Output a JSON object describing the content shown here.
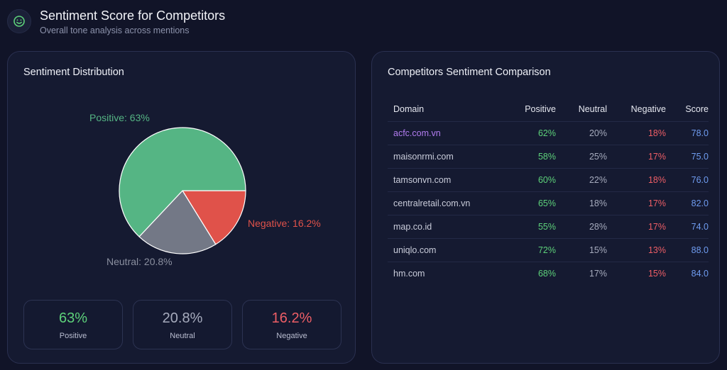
{
  "header": {
    "title": "Sentiment Score for Competitors",
    "subtitle": "Overall tone analysis across mentions",
    "icon": "smile-icon"
  },
  "distribution": {
    "title": "Sentiment Distribution",
    "labels": {
      "positive": "Positive: 63%",
      "neutral": "Neutral: 20.8%",
      "negative": "Negative: 16.2%"
    },
    "stats": [
      {
        "value": "63%",
        "label": "Positive"
      },
      {
        "value": "20.8%",
        "label": "Neutral"
      },
      {
        "value": "16.2%",
        "label": "Negative"
      }
    ]
  },
  "chart_data": {
    "type": "pie",
    "categories": [
      "Positive",
      "Neutral",
      "Negative"
    ],
    "values": [
      63,
      20.8,
      16.2
    ],
    "colors": [
      "#55b584",
      "#737886",
      "#e0524a"
    ]
  },
  "comparison": {
    "title": "Competitors Sentiment Comparison",
    "columns": [
      "Domain",
      "Positive",
      "Neutral",
      "Negative",
      "Score"
    ],
    "rows": [
      {
        "domain": "acfc.com.vn",
        "positive": "62%",
        "neutral": "20%",
        "negative": "18%",
        "score": "78.0"
      },
      {
        "domain": "maisonrmi.com",
        "positive": "58%",
        "neutral": "25%",
        "negative": "17%",
        "score": "75.0"
      },
      {
        "domain": "tamsonvn.com",
        "positive": "60%",
        "neutral": "22%",
        "negative": "18%",
        "score": "76.0"
      },
      {
        "domain": "centralretail.com.vn",
        "positive": "65%",
        "neutral": "18%",
        "negative": "17%",
        "score": "82.0"
      },
      {
        "domain": "map.co.id",
        "positive": "55%",
        "neutral": "28%",
        "negative": "17%",
        "score": "74.0"
      },
      {
        "domain": "uniqlo.com",
        "positive": "72%",
        "neutral": "15%",
        "negative": "13%",
        "score": "88.0"
      },
      {
        "domain": "hm.com",
        "positive": "68%",
        "neutral": "17%",
        "negative": "15%",
        "score": "84.0"
      }
    ]
  },
  "colors": {
    "background": "#111428",
    "card": "#151a31",
    "positive": "#5dd17a",
    "neutral": "#a6abbd",
    "negative": "#ee5e66",
    "score": "#6f9cf0",
    "highlight_domain": "#b27cf0"
  }
}
